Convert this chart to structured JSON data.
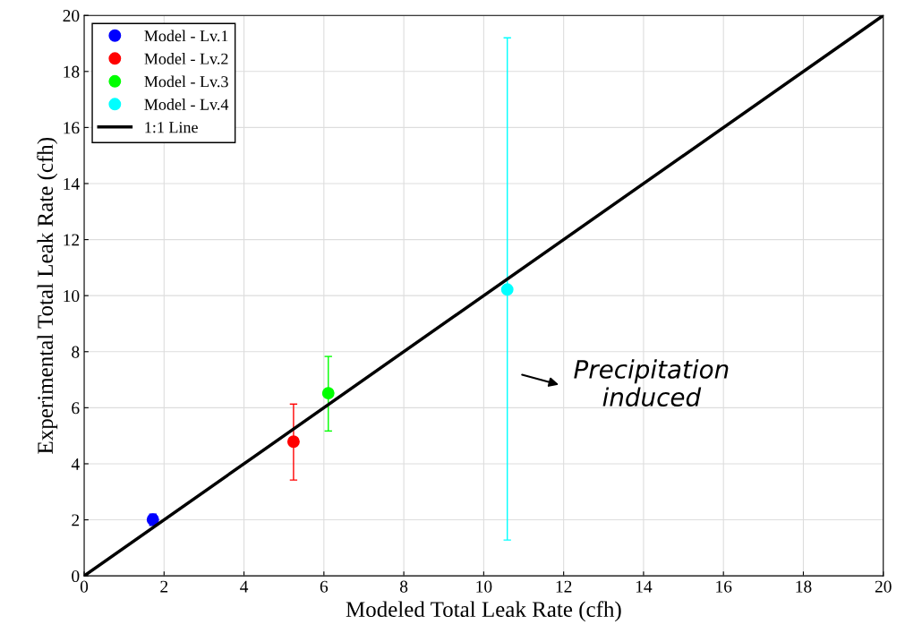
{
  "chart_data": {
    "type": "scatter",
    "xlabel": "Modeled Total Leak Rate (cfh)",
    "ylabel": "Experimental Total Leak Rate (cfh)",
    "xlim": [
      0,
      20
    ],
    "ylim": [
      0,
      20
    ],
    "xticks": [
      0,
      2,
      4,
      6,
      8,
      10,
      12,
      14,
      16,
      18,
      20
    ],
    "yticks": [
      0,
      2,
      4,
      6,
      8,
      10,
      12,
      14,
      16,
      18,
      20
    ],
    "grid": true,
    "legend": "top left",
    "series": [
      {
        "name": "Model - Lv.1",
        "color": "#0000ff",
        "marker": "circle",
        "x": [
          1.72
        ],
        "values": [
          2.01
        ],
        "errors": [
          [
            1.8,
            2.2
          ]
        ]
      },
      {
        "name": "Model - Lv.2",
        "color": "#ff0000",
        "marker": "circle",
        "x": [
          5.24
        ],
        "values": [
          4.79
        ],
        "errors": [
          [
            3.42,
            6.13
          ]
        ]
      },
      {
        "name": "Model - Lv.3",
        "color": "#00ff00",
        "marker": "circle",
        "x": [
          6.11
        ],
        "values": [
          6.52
        ],
        "errors": [
          [
            5.17,
            7.83
          ]
        ]
      },
      {
        "name": "Model - Lv.4",
        "color": "#00ffff",
        "marker": "circle",
        "x": [
          10.59
        ],
        "values": [
          10.22
        ],
        "errors": [
          [
            1.28,
            19.2
          ]
        ]
      },
      {
        "name": "1:1 Line",
        "type": "line",
        "color": "#000000",
        "x": [
          0,
          20
        ],
        "values": [
          0,
          20
        ]
      }
    ],
    "annotations": [
      "Precipitation\ninduced"
    ]
  }
}
